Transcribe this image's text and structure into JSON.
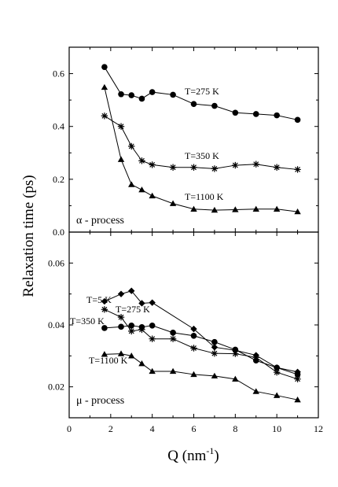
{
  "chart_data": [
    {
      "type": "line",
      "panel": "top",
      "annotation": "α - process",
      "xlim": [
        0,
        12
      ],
      "ylim": [
        0.0,
        0.7
      ],
      "yticks": [
        0.0,
        0.2,
        0.4,
        0.6
      ],
      "ytick_labels": [
        "0.0",
        "0.2",
        "0.4",
        "0.6"
      ],
      "grid": false,
      "series": [
        {
          "name": "T=275 K",
          "marker": "circle",
          "x": [
            1.7,
            2.5,
            3.0,
            3.5,
            4.0,
            5.0,
            6.0,
            7.0,
            8.0,
            9.0,
            10.0,
            11.0
          ],
          "y": [
            0.625,
            0.522,
            0.518,
            0.505,
            0.53,
            0.52,
            0.485,
            0.478,
            0.452,
            0.447,
            0.442,
            0.425
          ]
        },
        {
          "name": "T=350 K",
          "marker": "star",
          "x": [
            1.7,
            2.5,
            3.0,
            3.5,
            4.0,
            5.0,
            6.0,
            7.0,
            8.0,
            9.0,
            10.0,
            11.0
          ],
          "y": [
            0.44,
            0.4,
            0.325,
            0.27,
            0.255,
            0.245,
            0.245,
            0.24,
            0.253,
            0.257,
            0.245,
            0.237
          ]
        },
        {
          "name": "T=1100 K",
          "marker": "triangle",
          "x": [
            1.7,
            2.5,
            3.0,
            3.5,
            4.0,
            5.0,
            6.0,
            7.0,
            8.0,
            9.0,
            10.0,
            11.0
          ],
          "y": [
            0.548,
            0.275,
            0.18,
            0.16,
            0.137,
            0.108,
            0.087,
            0.083,
            0.085,
            0.087,
            0.087,
            0.077
          ]
        }
      ]
    },
    {
      "type": "line",
      "panel": "bottom",
      "annotation": "μ - process",
      "xlabel": "Q (nm⁻¹)",
      "xlim": [
        0,
        12
      ],
      "xticks": [
        0,
        2,
        4,
        6,
        8,
        10,
        12
      ],
      "ylim": [
        0.01,
        0.07
      ],
      "yticks": [
        0.02,
        0.04,
        0.06
      ],
      "ytick_labels": [
        "0.02",
        "0.04",
        "0.06"
      ],
      "grid": false,
      "series": [
        {
          "name": "T=5 K",
          "marker": "diamond",
          "x": [
            1.7,
            2.5,
            3.0,
            3.5,
            4.0,
            6.0,
            7.0,
            8.0,
            9.0,
            10.0,
            11.0
          ],
          "y": [
            0.0476,
            0.05,
            0.051,
            0.047,
            0.0472,
            0.0387,
            0.0328,
            0.0318,
            0.0302,
            0.0262,
            0.0248
          ]
        },
        {
          "name": "T=275 K",
          "marker": "circle",
          "x": [
            1.7,
            2.5,
            3.0,
            3.5,
            4.0,
            5.0,
            6.0,
            7.0,
            8.0,
            9.0,
            10.0,
            11.0
          ],
          "y": [
            0.039,
            0.0394,
            0.0398,
            0.0393,
            0.0398,
            0.0375,
            0.0365,
            0.0345,
            0.032,
            0.0285,
            0.0262,
            0.024
          ]
        },
        {
          "name": "T=350 K",
          "marker": "star",
          "x": [
            1.7,
            2.5,
            3.0,
            3.5,
            4.0,
            5.0,
            6.0,
            7.0,
            8.0,
            9.0,
            10.0,
            11.0
          ],
          "y": [
            0.045,
            0.0425,
            0.038,
            0.0385,
            0.0355,
            0.0355,
            0.0325,
            0.0308,
            0.0307,
            0.0295,
            0.0247,
            0.0225
          ]
        },
        {
          "name": "T=1100 K",
          "marker": "triangle",
          "x": [
            1.7,
            2.5,
            3.0,
            3.5,
            4.0,
            5.0,
            6.0,
            7.0,
            8.0,
            9.0,
            10.0,
            11.0
          ],
          "y": [
            0.0305,
            0.0307,
            0.03,
            0.0275,
            0.025,
            0.025,
            0.024,
            0.0235,
            0.0225,
            0.0185,
            0.0172,
            0.0158
          ]
        }
      ]
    }
  ],
  "ylabel": "Relaxation time (ps)",
  "xlabel_main": "Q (nm",
  "xlabel_sup": "-1",
  "xlabel_close": ")",
  "x_tick_labels": [
    "0",
    "2",
    "4",
    "6",
    "8",
    "10",
    "12"
  ]
}
